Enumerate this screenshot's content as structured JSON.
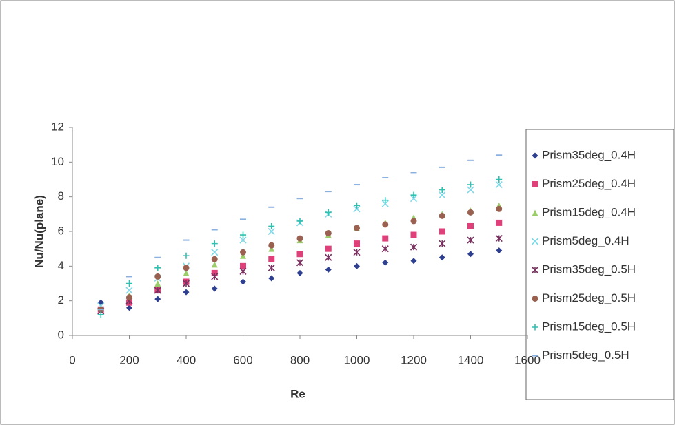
{
  "chart_data": {
    "type": "scatter",
    "x_label": "Re",
    "y_label": "Nu/Nu(plane)",
    "x": [
      100,
      200,
      300,
      400,
      500,
      600,
      700,
      800,
      900,
      1000,
      1100,
      1200,
      1300,
      1400,
      1500
    ],
    "xlim": [
      0,
      1600
    ],
    "xticks": [
      0,
      200,
      400,
      600,
      800,
      1000,
      1200,
      1400,
      1600
    ],
    "ylim": [
      0,
      12
    ],
    "yticks": [
      0,
      2,
      4,
      6,
      8,
      10,
      12
    ],
    "legend": "right",
    "series": [
      {
        "name": "Prism35deg_0.4H",
        "color": "#2e3f8f",
        "marker": "diamond",
        "values": [
          1.9,
          1.6,
          2.1,
          2.5,
          2.7,
          3.1,
          3.3,
          3.6,
          3.8,
          4.0,
          4.2,
          4.3,
          4.5,
          4.7,
          4.9
        ]
      },
      {
        "name": "Prism25deg_0.4H",
        "color": "#e0407a",
        "marker": "square",
        "values": [
          1.5,
          1.9,
          2.6,
          3.1,
          3.6,
          4.0,
          4.4,
          4.7,
          5.0,
          5.3,
          5.6,
          5.8,
          6.0,
          6.3,
          6.5
        ]
      },
      {
        "name": "Prism15deg_0.4H",
        "color": "#9acd6a",
        "marker": "triangle",
        "values": [
          1.6,
          2.3,
          3.0,
          3.6,
          4.1,
          4.6,
          5.0,
          5.5,
          5.8,
          6.2,
          6.5,
          6.8,
          7.0,
          7.2,
          7.5
        ]
      },
      {
        "name": "Prism5deg_0.4H",
        "color": "#7fd8e8",
        "marker": "x",
        "values": [
          1.7,
          2.6,
          3.3,
          4.0,
          4.8,
          5.5,
          6.0,
          6.5,
          7.0,
          7.3,
          7.6,
          7.9,
          8.1,
          8.4,
          8.7
        ]
      },
      {
        "name": "Prism35deg_0.5H",
        "color": "#7a3060",
        "marker": "star",
        "values": [
          1.4,
          2.0,
          2.6,
          3.0,
          3.4,
          3.7,
          3.9,
          4.2,
          4.5,
          4.8,
          5.0,
          5.1,
          5.3,
          5.5,
          5.6
        ]
      },
      {
        "name": "Prism25deg_0.5H",
        "color": "#9a6050",
        "marker": "circle",
        "values": [
          1.5,
          2.2,
          3.4,
          3.9,
          4.4,
          4.8,
          5.2,
          5.6,
          5.9,
          6.2,
          6.4,
          6.6,
          6.9,
          7.1,
          7.3
        ]
      },
      {
        "name": "Prism15deg_0.5H",
        "color": "#30c0b0",
        "marker": "plus",
        "values": [
          1.2,
          3.0,
          3.9,
          4.6,
          5.3,
          5.8,
          6.3,
          6.6,
          7.1,
          7.5,
          7.8,
          8.1,
          8.4,
          8.7,
          9.0
        ]
      },
      {
        "name": "Prism5deg_0.5H",
        "color": "#8ab0e0",
        "marker": "dash",
        "values": [
          1.5,
          3.4,
          4.5,
          5.5,
          6.1,
          6.7,
          7.4,
          7.9,
          8.3,
          8.7,
          9.1,
          9.4,
          9.7,
          10.1,
          10.4
        ]
      }
    ]
  }
}
